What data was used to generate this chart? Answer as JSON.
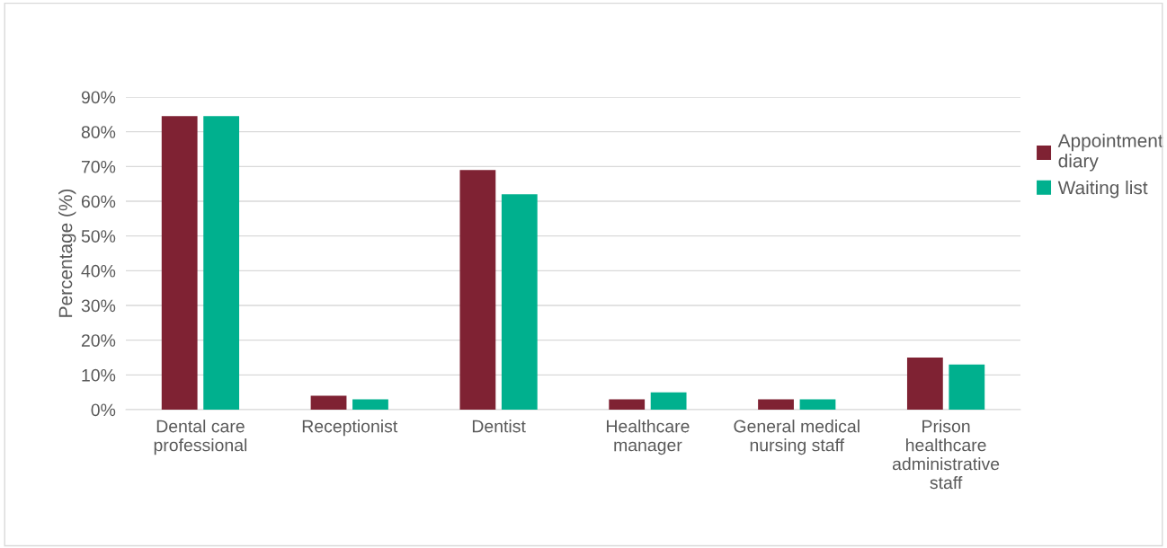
{
  "chart_data": {
    "type": "bar",
    "ylabel": "Percentage (%)",
    "categories": [
      "Dental care\nprofessional",
      "Receptionist",
      "Dentist",
      "Healthcare\nmanager",
      "General medical\nnursing staff",
      "Prison\nhealthcare\nadministrative\nstaff"
    ],
    "series": [
      {
        "name": "Appointment\ndiary",
        "color": "#7f2233",
        "values": [
          84.5,
          4,
          69,
          3,
          3,
          15
        ]
      },
      {
        "name": "Waiting list",
        "color": "#00b08e",
        "values": [
          84.5,
          3,
          62,
          5,
          3,
          13
        ]
      }
    ],
    "ylim": [
      0,
      90
    ],
    "yticks": [
      {
        "value": 0,
        "label": "0%"
      },
      {
        "value": 10,
        "label": "10%"
      },
      {
        "value": 20,
        "label": "20%"
      },
      {
        "value": 30,
        "label": "30%"
      },
      {
        "value": 40,
        "label": "40%"
      },
      {
        "value": 50,
        "label": "50%"
      },
      {
        "value": 60,
        "label": "60%"
      },
      {
        "value": 70,
        "label": "70%"
      },
      {
        "value": 80,
        "label": "80%"
      },
      {
        "value": 90,
        "label": "90%"
      }
    ],
    "grid": "y",
    "legend": "right"
  }
}
